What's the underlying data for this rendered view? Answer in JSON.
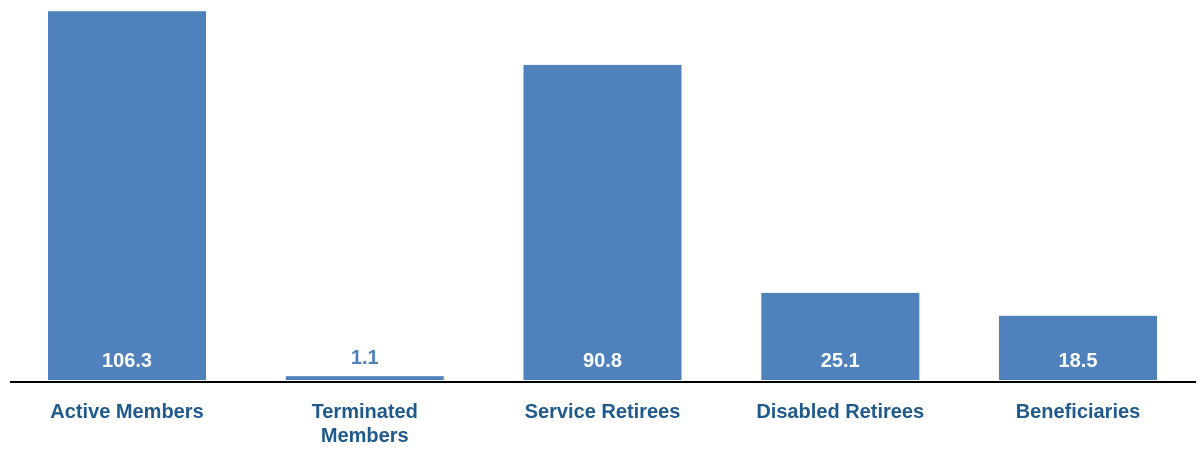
{
  "chart_data": {
    "type": "bar",
    "categories": [
      "Active Members",
      "Terminated Members",
      "Service Retirees",
      "Disabled Retirees",
      "Beneficiaries"
    ],
    "category_lines": [
      [
        "Active Members"
      ],
      [
        "Terminated",
        "Members"
      ],
      [
        "Service Retirees"
      ],
      [
        "Disabled Retirees"
      ],
      [
        "Beneficiaries"
      ]
    ],
    "values": [
      106.3,
      1.1,
      90.8,
      25.1,
      18.5
    ],
    "data_labels": [
      "106.3",
      "1.1",
      "90.8",
      "25.1",
      "18.5"
    ],
    "title": "",
    "xlabel": "",
    "ylabel": "",
    "ylim": [
      0,
      107.5
    ],
    "grid": false,
    "legend": "none"
  },
  "colors": {
    "bar": "#4f81bd",
    "label_inside": "#ffffff",
    "label_outside": "#4f81bd",
    "category_text": "#1f5a8c",
    "axis": "#000000"
  }
}
